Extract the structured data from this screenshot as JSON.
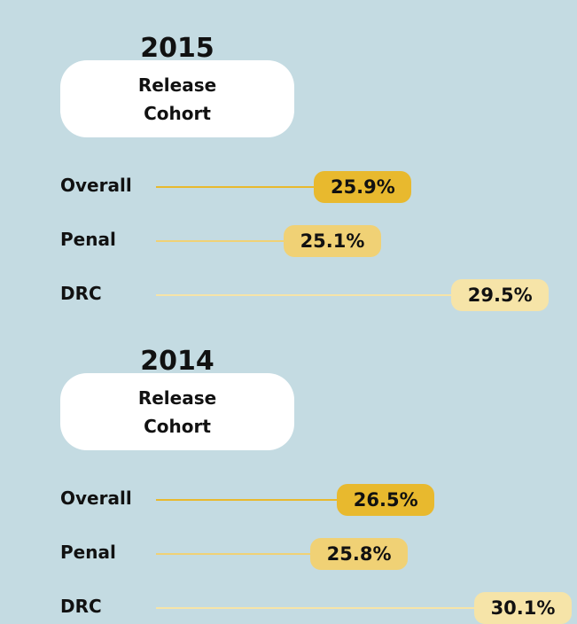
{
  "chart_data": [
    {
      "type": "bar",
      "orientation": "horizontal",
      "title": "2015",
      "subtitle": "Release Cohort",
      "categories": [
        "Overall",
        "Penal",
        "DRC"
      ],
      "values": [
        25.9,
        25.1,
        29.5
      ],
      "value_labels": [
        "25.9%",
        "25.1%",
        "29.5%"
      ],
      "colors": [
        "#e8b92e",
        "#f0d175",
        "#f6e4a8"
      ]
    },
    {
      "type": "bar",
      "orientation": "horizontal",
      "title": "2014",
      "subtitle": "Release Cohort",
      "categories": [
        "Overall",
        "Penal",
        "DRC"
      ],
      "values": [
        26.5,
        25.8,
        30.1
      ],
      "value_labels": [
        "26.5%",
        "25.8%",
        "30.1%"
      ],
      "colors": [
        "#e8b92e",
        "#f0d175",
        "#f6e4a8"
      ]
    }
  ]
}
